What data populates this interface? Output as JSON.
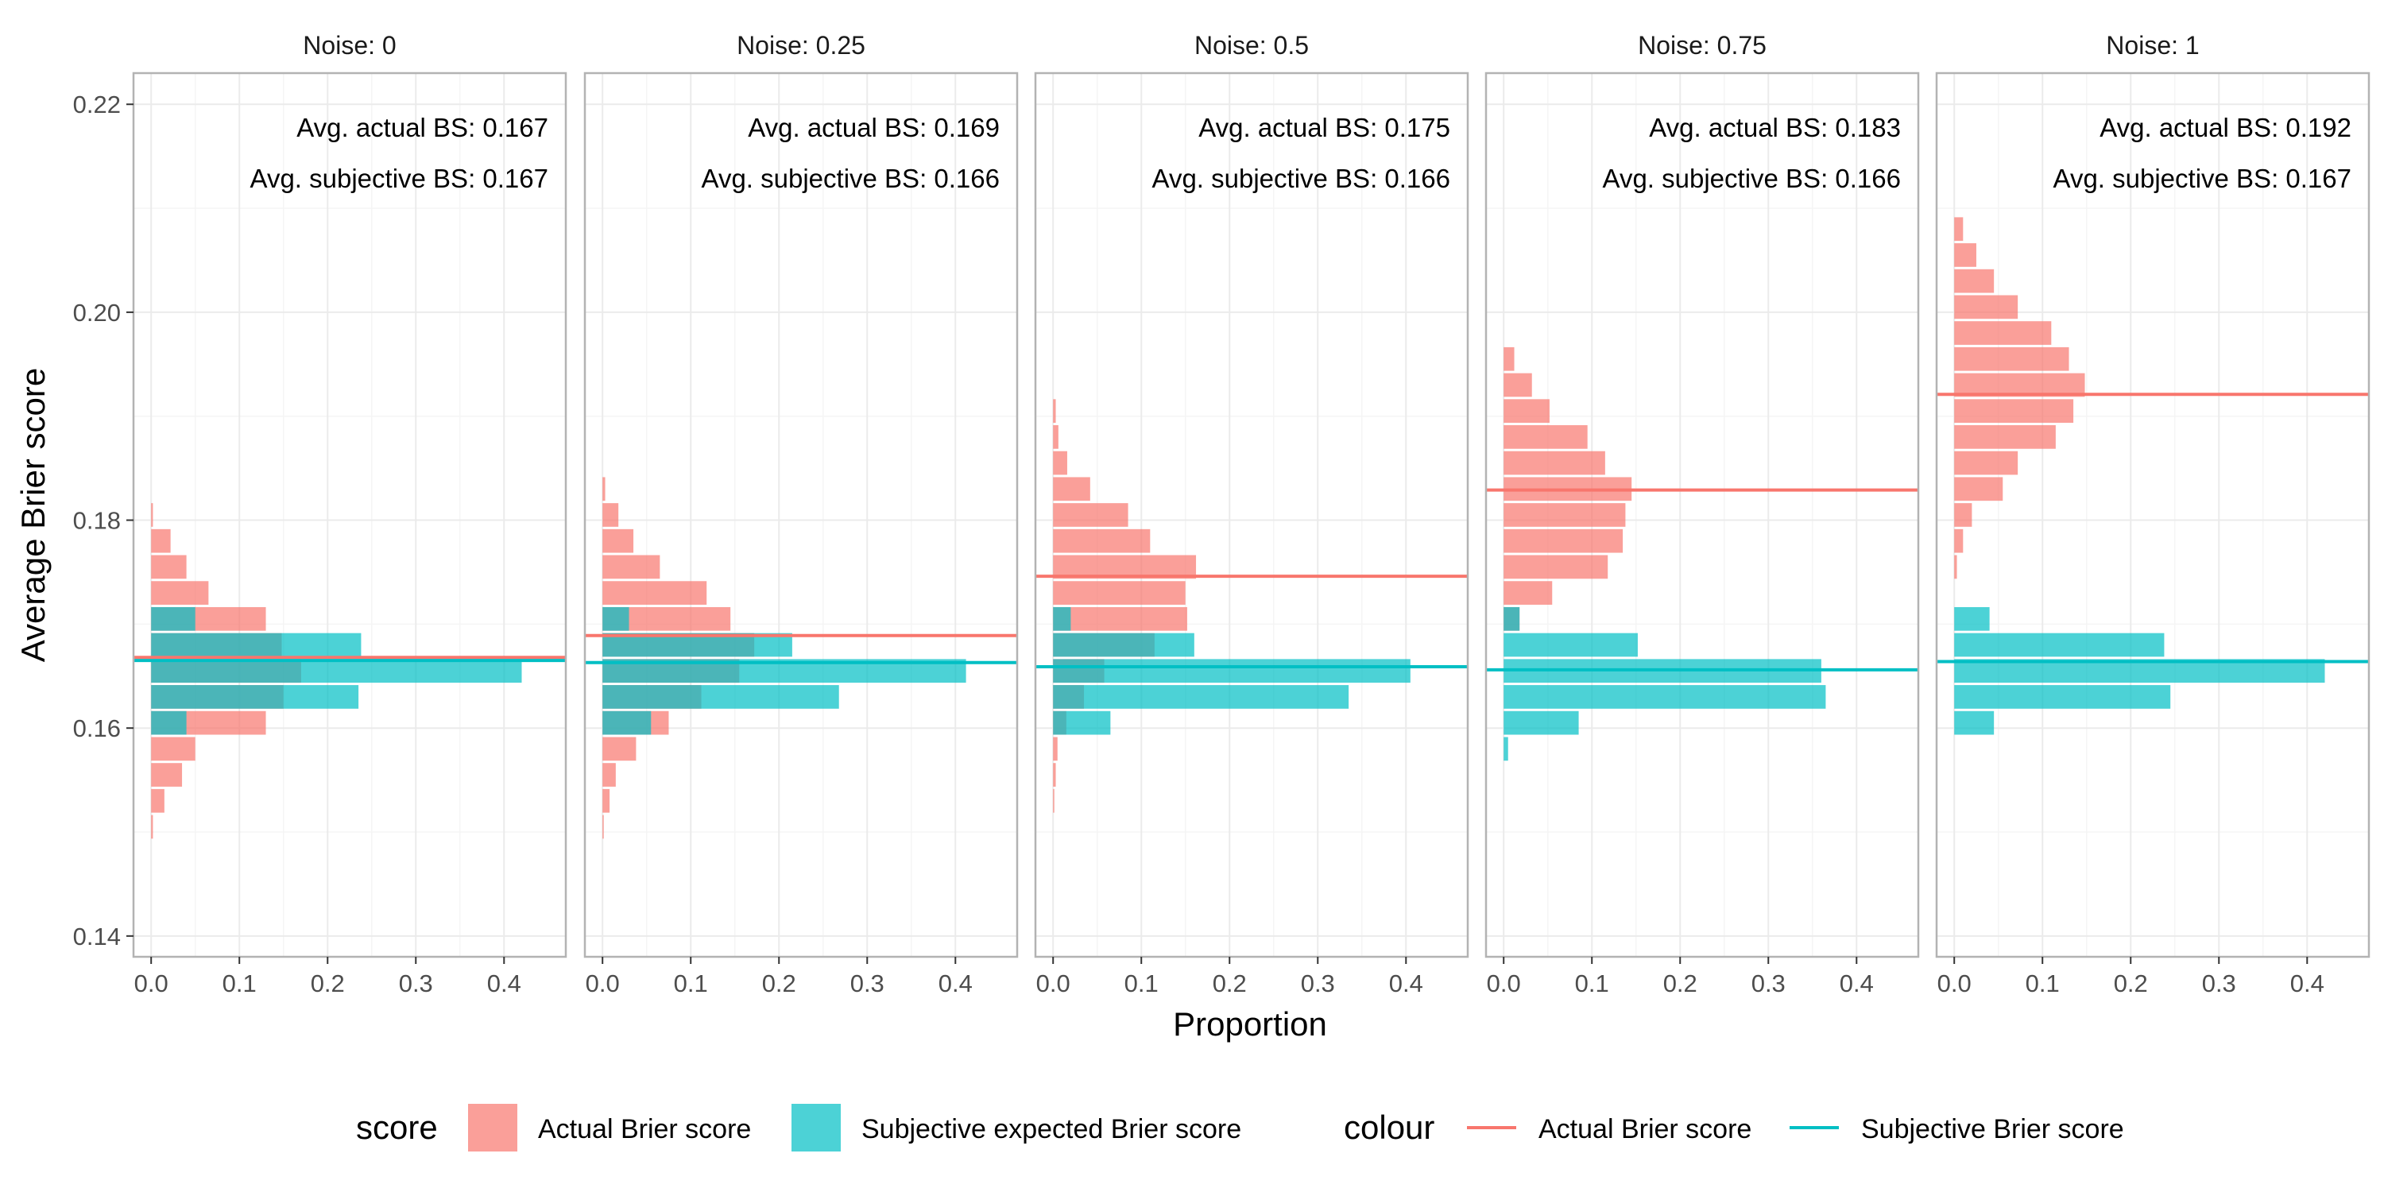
{
  "colors": {
    "actual": "#F8766D",
    "subjective": "#00BFC4",
    "panel_border": "#B3B3B3",
    "grid_major": "#EBEBEB",
    "grid_minor": "#F5F5F5",
    "tick_text": "#4D4D4D",
    "text": "#1A1A1A"
  },
  "chart_data": {
    "type": "bar",
    "orientation": "horizontal",
    "layout": "faceted histogram with reference lines",
    "xlabel": "Proportion",
    "ylabel": "Average Brier score",
    "xlim": [
      -0.02,
      0.47
    ],
    "ylim": [
      0.138,
      0.223
    ],
    "x_ticks": [
      0.0,
      0.1,
      0.2,
      0.3,
      0.4
    ],
    "x_tick_labels": [
      "0.0",
      "0.1",
      "0.2",
      "0.3",
      "0.4"
    ],
    "y_ticks": [
      0.14,
      0.16,
      0.18,
      0.2,
      0.22
    ],
    "y_tick_labels": [
      "0.14",
      "0.16",
      "0.18",
      "0.20",
      "0.22"
    ],
    "bin_width": 0.0025,
    "legend": {
      "position": "bottom",
      "fill_title": "score",
      "fill_items": [
        {
          "label": "Actual Brier score",
          "key": "actual"
        },
        {
          "label": "Subjective expected Brier score",
          "key": "subjective"
        }
      ],
      "line_title": "colour",
      "line_items": [
        {
          "label": "Actual Brier score",
          "key": "actual"
        },
        {
          "label": "Subjective Brier score",
          "key": "subjective"
        }
      ]
    },
    "panels": [
      {
        "title": "Noise: 0",
        "annotation_actual": "Avg. actual BS: 0.167",
        "annotation_subjective": "Avg. subjective BS: 0.167",
        "hline_actual": 0.1668,
        "hline_subjective": 0.1665,
        "actual_bins": [
          {
            "y": 0.1505,
            "value": 0.002
          },
          {
            "y": 0.153,
            "value": 0.015
          },
          {
            "y": 0.1555,
            "value": 0.035
          },
          {
            "y": 0.158,
            "value": 0.05
          },
          {
            "y": 0.1605,
            "value": 0.13
          },
          {
            "y": 0.163,
            "value": 0.15
          },
          {
            "y": 0.1655,
            "value": 0.17
          },
          {
            "y": 0.168,
            "value": 0.148
          },
          {
            "y": 0.1705,
            "value": 0.13
          },
          {
            "y": 0.173,
            "value": 0.065
          },
          {
            "y": 0.1755,
            "value": 0.04
          },
          {
            "y": 0.178,
            "value": 0.022
          },
          {
            "y": 0.1805,
            "value": 0.002
          }
        ],
        "subjective_bins": [
          {
            "y": 0.1605,
            "value": 0.04
          },
          {
            "y": 0.163,
            "value": 0.235
          },
          {
            "y": 0.1655,
            "value": 0.42
          },
          {
            "y": 0.168,
            "value": 0.238
          },
          {
            "y": 0.1705,
            "value": 0.05
          }
        ]
      },
      {
        "title": "Noise: 0.25",
        "annotation_actual": "Avg. actual BS: 0.169",
        "annotation_subjective": "Avg. subjective BS: 0.166",
        "hline_actual": 0.1689,
        "hline_subjective": 0.1663,
        "actual_bins": [
          {
            "y": 0.1505,
            "value": 0.001
          },
          {
            "y": 0.153,
            "value": 0.008
          },
          {
            "y": 0.1555,
            "value": 0.015
          },
          {
            "y": 0.158,
            "value": 0.038
          },
          {
            "y": 0.1605,
            "value": 0.075
          },
          {
            "y": 0.163,
            "value": 0.112
          },
          {
            "y": 0.1655,
            "value": 0.155
          },
          {
            "y": 0.168,
            "value": 0.172
          },
          {
            "y": 0.1705,
            "value": 0.145
          },
          {
            "y": 0.173,
            "value": 0.118
          },
          {
            "y": 0.1755,
            "value": 0.065
          },
          {
            "y": 0.178,
            "value": 0.035
          },
          {
            "y": 0.1805,
            "value": 0.018
          },
          {
            "y": 0.183,
            "value": 0.003
          }
        ],
        "subjective_bins": [
          {
            "y": 0.1605,
            "value": 0.055
          },
          {
            "y": 0.163,
            "value": 0.268
          },
          {
            "y": 0.1655,
            "value": 0.412
          },
          {
            "y": 0.168,
            "value": 0.215
          },
          {
            "y": 0.1705,
            "value": 0.03
          }
        ]
      },
      {
        "title": "Noise: 0.5",
        "annotation_actual": "Avg. actual BS: 0.175",
        "annotation_subjective": "Avg. subjective BS: 0.166",
        "hline_actual": 0.1746,
        "hline_subjective": 0.1659,
        "actual_bins": [
          {
            "y": 0.153,
            "value": 0.001
          },
          {
            "y": 0.1555,
            "value": 0.003
          },
          {
            "y": 0.158,
            "value": 0.005
          },
          {
            "y": 0.1605,
            "value": 0.015
          },
          {
            "y": 0.163,
            "value": 0.035
          },
          {
            "y": 0.1655,
            "value": 0.058
          },
          {
            "y": 0.168,
            "value": 0.115
          },
          {
            "y": 0.1705,
            "value": 0.152
          },
          {
            "y": 0.173,
            "value": 0.15
          },
          {
            "y": 0.1755,
            "value": 0.162
          },
          {
            "y": 0.178,
            "value": 0.11
          },
          {
            "y": 0.1805,
            "value": 0.085
          },
          {
            "y": 0.183,
            "value": 0.042
          },
          {
            "y": 0.1855,
            "value": 0.016
          },
          {
            "y": 0.188,
            "value": 0.006
          },
          {
            "y": 0.1905,
            "value": 0.003
          }
        ],
        "subjective_bins": [
          {
            "y": 0.1605,
            "value": 0.065
          },
          {
            "y": 0.163,
            "value": 0.335
          },
          {
            "y": 0.1655,
            "value": 0.405
          },
          {
            "y": 0.168,
            "value": 0.16
          },
          {
            "y": 0.1705,
            "value": 0.02
          }
        ]
      },
      {
        "title": "Noise: 0.75",
        "annotation_actual": "Avg. actual BS: 0.183",
        "annotation_subjective": "Avg. subjective BS: 0.166",
        "hline_actual": 0.1829,
        "hline_subjective": 0.1656,
        "actual_bins": [
          {
            "y": 0.1705,
            "value": 0.018
          },
          {
            "y": 0.173,
            "value": 0.055
          },
          {
            "y": 0.1755,
            "value": 0.118
          },
          {
            "y": 0.178,
            "value": 0.135
          },
          {
            "y": 0.1805,
            "value": 0.138
          },
          {
            "y": 0.183,
            "value": 0.145
          },
          {
            "y": 0.1855,
            "value": 0.115
          },
          {
            "y": 0.188,
            "value": 0.095
          },
          {
            "y": 0.1905,
            "value": 0.052
          },
          {
            "y": 0.193,
            "value": 0.032
          },
          {
            "y": 0.1955,
            "value": 0.012
          }
        ],
        "subjective_bins": [
          {
            "y": 0.158,
            "value": 0.005
          },
          {
            "y": 0.1605,
            "value": 0.085
          },
          {
            "y": 0.163,
            "value": 0.365
          },
          {
            "y": 0.1655,
            "value": 0.36
          },
          {
            "y": 0.168,
            "value": 0.152
          },
          {
            "y": 0.1705,
            "value": 0.018
          }
        ]
      },
      {
        "title": "Noise: 1",
        "annotation_actual": "Avg. actual BS: 0.192",
        "annotation_subjective": "Avg. subjective BS: 0.167",
        "hline_actual": 0.1921,
        "hline_subjective": 0.1664,
        "actual_bins": [
          {
            "y": 0.1755,
            "value": 0.003
          },
          {
            "y": 0.178,
            "value": 0.01
          },
          {
            "y": 0.1805,
            "value": 0.02
          },
          {
            "y": 0.183,
            "value": 0.055
          },
          {
            "y": 0.1855,
            "value": 0.072
          },
          {
            "y": 0.188,
            "value": 0.115
          },
          {
            "y": 0.1905,
            "value": 0.135
          },
          {
            "y": 0.193,
            "value": 0.148
          },
          {
            "y": 0.1955,
            "value": 0.13
          },
          {
            "y": 0.198,
            "value": 0.11
          },
          {
            "y": 0.2005,
            "value": 0.072
          },
          {
            "y": 0.203,
            "value": 0.045
          },
          {
            "y": 0.2055,
            "value": 0.025
          },
          {
            "y": 0.208,
            "value": 0.01
          }
        ],
        "subjective_bins": [
          {
            "y": 0.1605,
            "value": 0.045
          },
          {
            "y": 0.163,
            "value": 0.245
          },
          {
            "y": 0.1655,
            "value": 0.42
          },
          {
            "y": 0.168,
            "value": 0.238
          },
          {
            "y": 0.1705,
            "value": 0.04
          }
        ]
      }
    ]
  }
}
